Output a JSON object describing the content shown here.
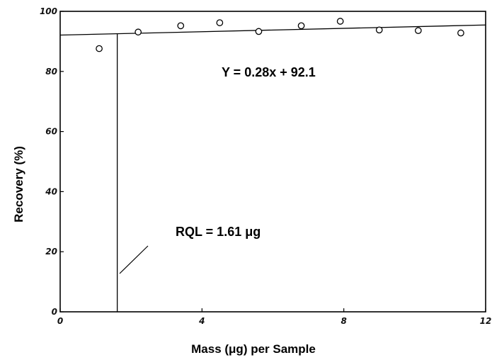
{
  "chart_data": {
    "type": "scatter",
    "xlabel": "Mass (μg) per Sample",
    "ylabel": "Recovery (%)",
    "xlim": [
      0,
      12
    ],
    "ylim": [
      0,
      100
    ],
    "xticks": [
      0,
      4,
      8,
      12
    ],
    "yticks": [
      0,
      20,
      40,
      60,
      80,
      100
    ],
    "xtick_labels": [
      "0",
      "4",
      "8",
      "12"
    ],
    "ytick_labels": [
      "0",
      "20",
      "40",
      "60",
      "80",
      "100"
    ],
    "grid": false,
    "series": [
      {
        "x": [
          1.1,
          2.2,
          3.4,
          4.5,
          5.6,
          6.8,
          7.9,
          9.0,
          10.1,
          11.3
        ],
        "y": [
          87.6,
          93.1,
          95.2,
          96.2,
          93.3,
          95.2,
          96.7,
          93.8,
          93.6,
          92.8
        ]
      }
    ],
    "fit_line": {
      "slope": 0.28,
      "intercept": 92.1,
      "label": "Y = 0.28x + 92.1"
    },
    "rql": {
      "x": 1.61,
      "label": "RQL = 1.61 μg"
    }
  }
}
